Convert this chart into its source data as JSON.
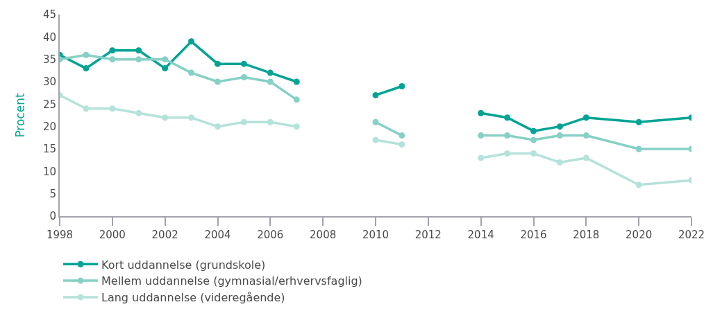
{
  "chart_data": {
    "type": "line",
    "ylabel": "Procent",
    "x": [
      1998,
      1999,
      2000,
      2001,
      2002,
      2003,
      2004,
      2005,
      2006,
      2007,
      2008,
      2009,
      2010,
      2011,
      2012,
      2013,
      2014,
      2015,
      2016,
      2017,
      2018,
      2020,
      2022
    ],
    "series": [
      {
        "name": "Kort uddannelse (grundskole)",
        "color": "#00a394",
        "values": [
          36,
          33,
          37,
          37,
          33,
          39,
          34,
          34,
          32,
          30,
          null,
          null,
          27,
          29,
          null,
          null,
          23,
          22,
          19,
          20,
          22,
          21,
          22
        ]
      },
      {
        "name": "Mellem uddannelse (gymnasial/erhvervsfaglig)",
        "color": "#86d0c5",
        "values": [
          35,
          36,
          35,
          35,
          35,
          32,
          30,
          31,
          30,
          26,
          null,
          null,
          21,
          18,
          null,
          null,
          18,
          18,
          17,
          18,
          18,
          15,
          15
        ]
      },
      {
        "name": "Lang uddannelse (videregående)",
        "color": "#b5e2da",
        "values": [
          27,
          24,
          24,
          23,
          22,
          22,
          20,
          21,
          21,
          20,
          null,
          null,
          17,
          16,
          null,
          null,
          13,
          14,
          14,
          12,
          13,
          7,
          8
        ]
      }
    ],
    "xlim": [
      1998,
      2022
    ],
    "xticks": [
      1998,
      2000,
      2002,
      2004,
      2006,
      2008,
      2010,
      2012,
      2014,
      2016,
      2018,
      2020,
      2022
    ],
    "ylim": [
      0,
      45
    ],
    "yticks": [
      0,
      5,
      10,
      15,
      20,
      25,
      30,
      35,
      40,
      45
    ],
    "legend": "bottom left",
    "marker": "circle",
    "line_style": "solid"
  }
}
